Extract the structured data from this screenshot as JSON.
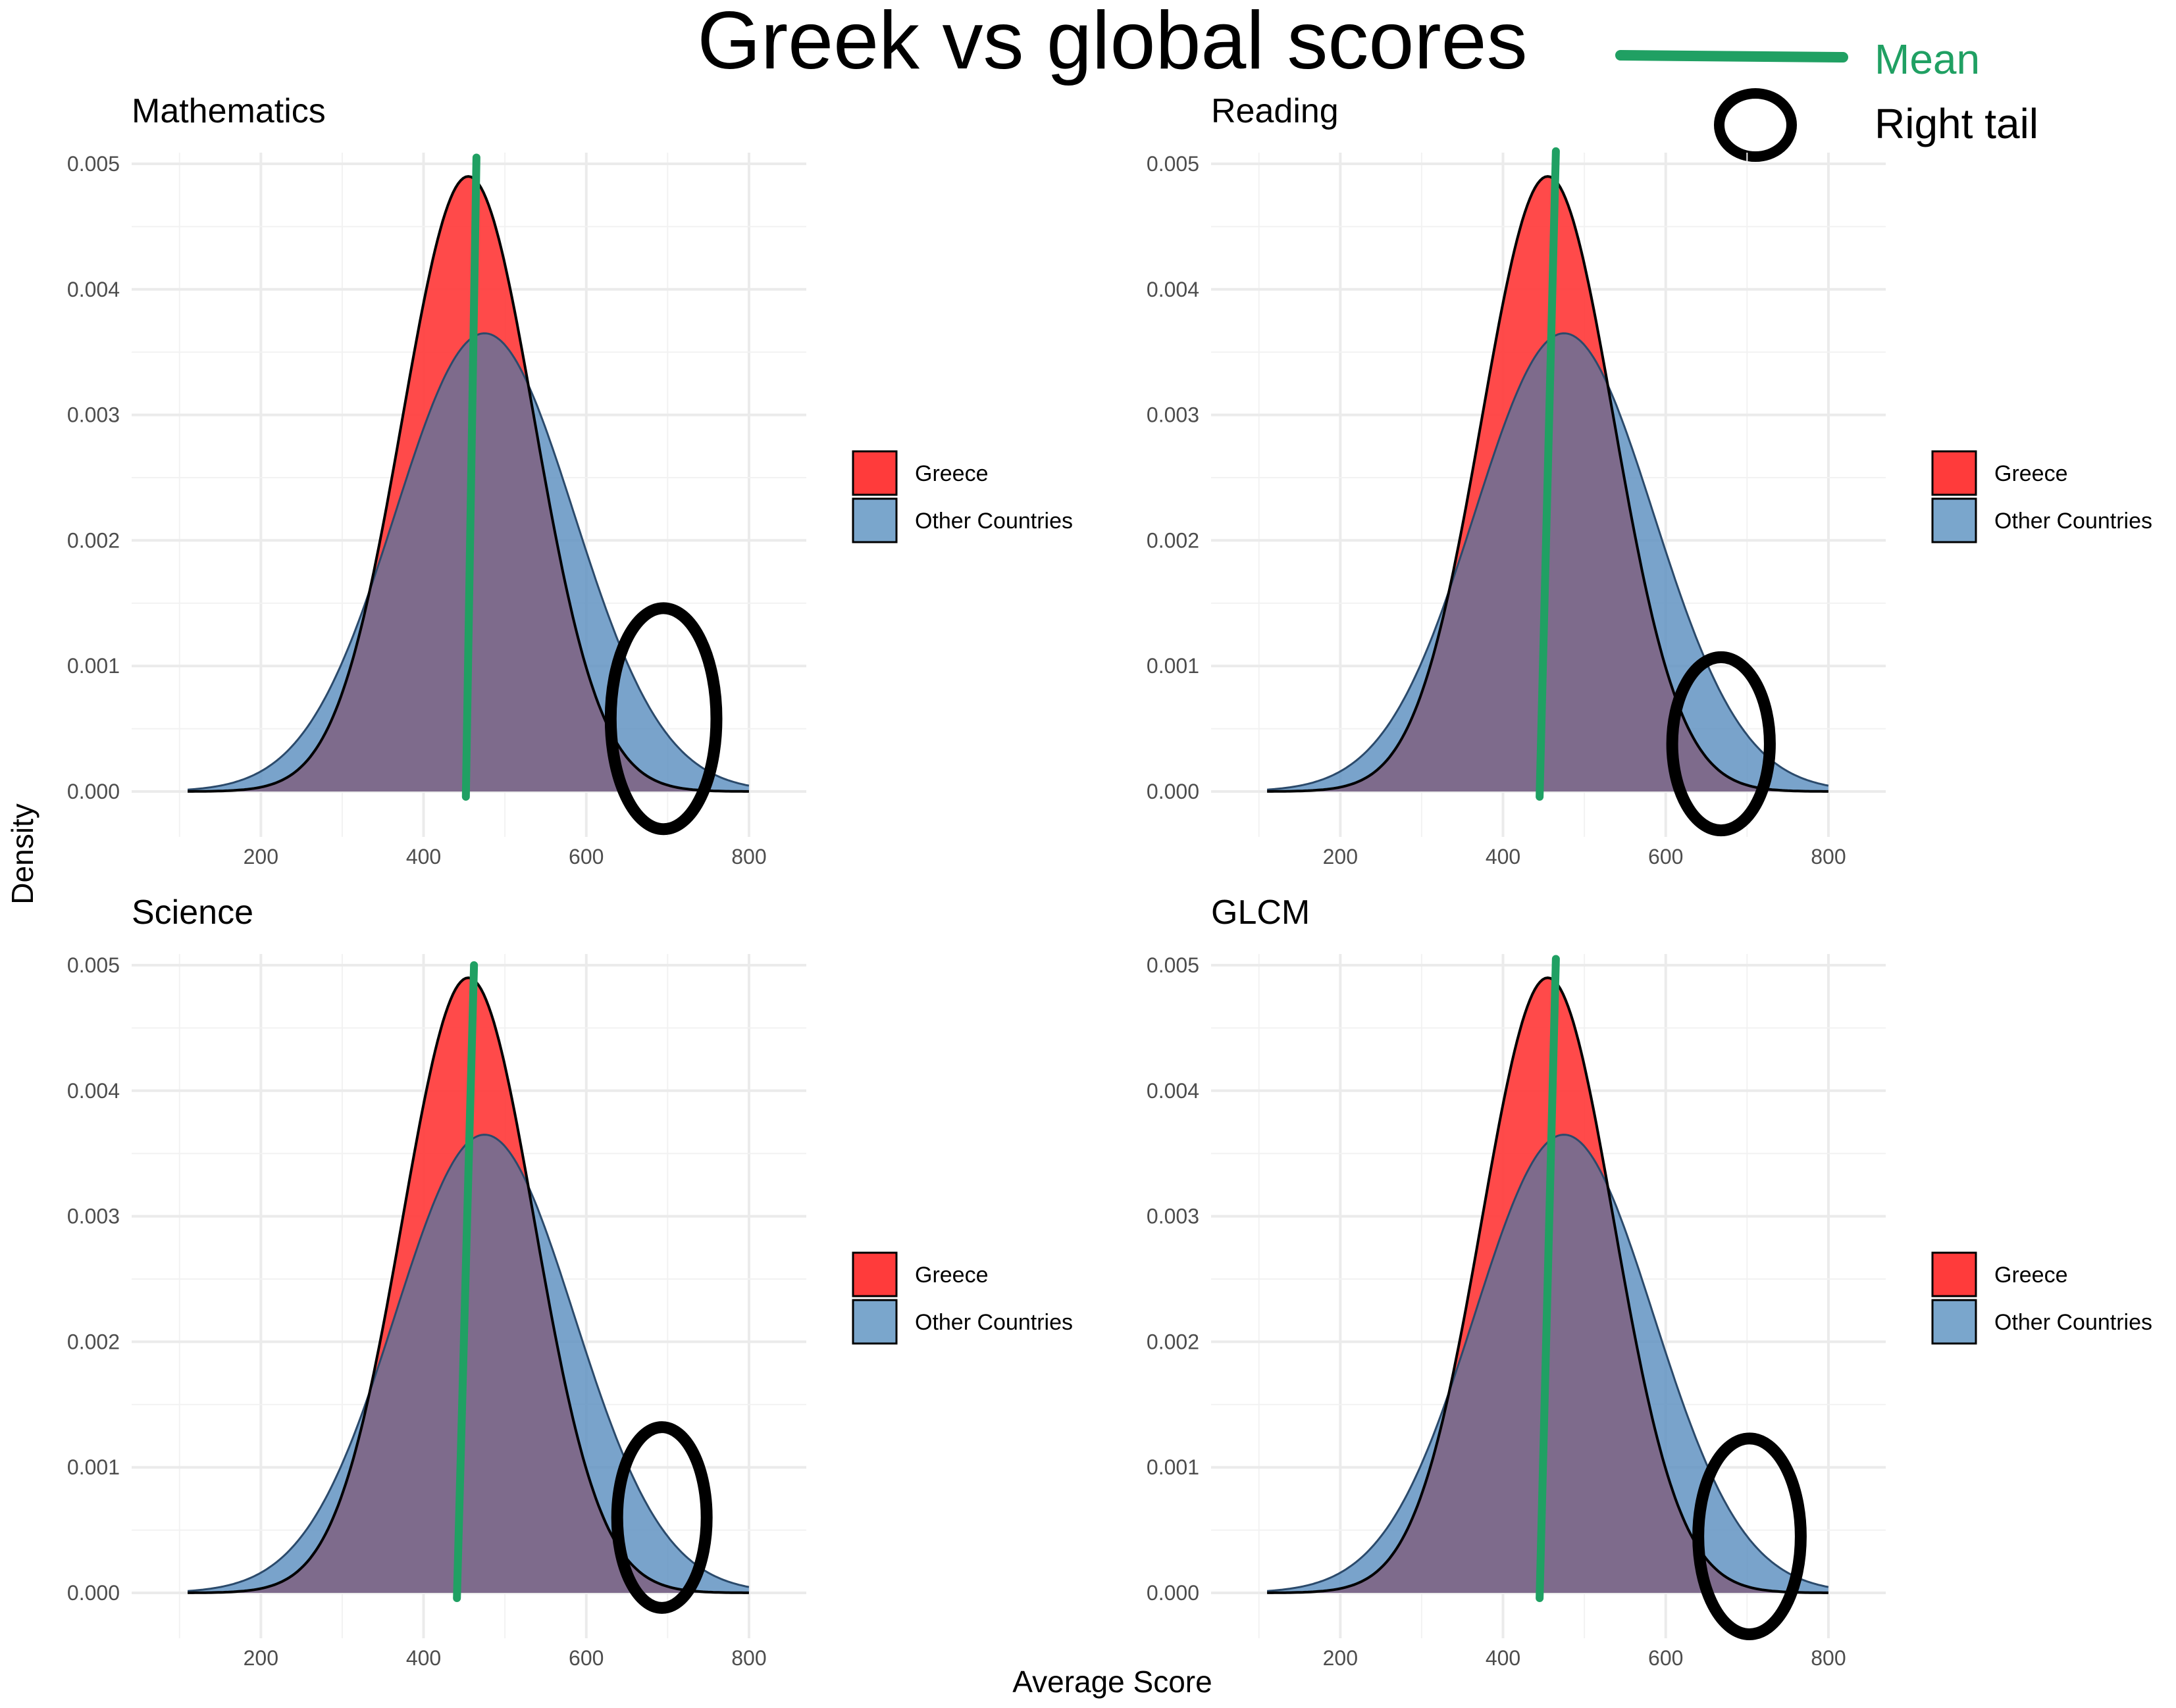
{
  "chart_data": {
    "type": "area",
    "title": "Greek vs global scores",
    "xlabel": "Average Score",
    "ylabel": "Density",
    "xlim": [
      80,
      830
    ],
    "ylim": [
      0,
      0.005
    ],
    "x_ticks": [
      200,
      400,
      600,
      800
    ],
    "y_ticks": [
      0.0,
      0.001,
      0.002,
      0.003,
      0.004,
      0.005
    ],
    "y_tick_labels": [
      "0.000",
      "0.001",
      "0.002",
      "0.003",
      "0.004",
      "0.005"
    ],
    "grid": true,
    "colors": {
      "greece": "#ff3b3b",
      "other": "#5b8fbf",
      "overlap": "#7e6b8c",
      "mean": "#20a063",
      "circle": "#000000"
    },
    "key": {
      "mean_label": "Mean",
      "tail_label": "Right tail"
    },
    "series_names": [
      "Greece",
      "Other Countries"
    ],
    "panels": [
      {
        "title": "Mathematics",
        "greece_mean": 455,
        "greece_sd": 81,
        "greece_peak": 0.0049,
        "other_mean": 475,
        "other_sd": 110,
        "other_peak": 0.00365,
        "mean_line": {
          "x_top": 465,
          "x_bottom": 452,
          "y_top": 0.00505
        },
        "tail_circle": {
          "x": 695,
          "y": 0.00058,
          "rx": 65,
          "ry": 0.00088
        }
      },
      {
        "title": "Reading",
        "greece_mean": 455,
        "greece_sd": 81,
        "greece_peak": 0.0049,
        "other_mean": 475,
        "other_sd": 110,
        "other_peak": 0.00365,
        "mean_line": {
          "x_top": 465,
          "x_bottom": 445,
          "y_top": 0.0051
        },
        "tail_circle": {
          "x": 668,
          "y": 0.00038,
          "rx": 60,
          "ry": 0.00069
        }
      },
      {
        "title": "Science",
        "greece_mean": 455,
        "greece_sd": 81,
        "greece_peak": 0.0049,
        "other_mean": 475,
        "other_sd": 110,
        "other_peak": 0.00365,
        "mean_line": {
          "x_top": 462,
          "x_bottom": 441,
          "y_top": 0.005
        },
        "tail_circle": {
          "x": 693,
          "y": 0.0006,
          "rx": 55,
          "ry": 0.00072
        }
      },
      {
        "title": "GLCM",
        "greece_mean": 455,
        "greece_sd": 81,
        "greece_peak": 0.0049,
        "other_mean": 475,
        "other_sd": 110,
        "other_peak": 0.00365,
        "mean_line": {
          "x_top": 465,
          "x_bottom": 445,
          "y_top": 0.00505
        },
        "tail_circle": {
          "x": 703,
          "y": 0.00045,
          "rx": 63,
          "ry": 0.00078
        }
      }
    ]
  }
}
